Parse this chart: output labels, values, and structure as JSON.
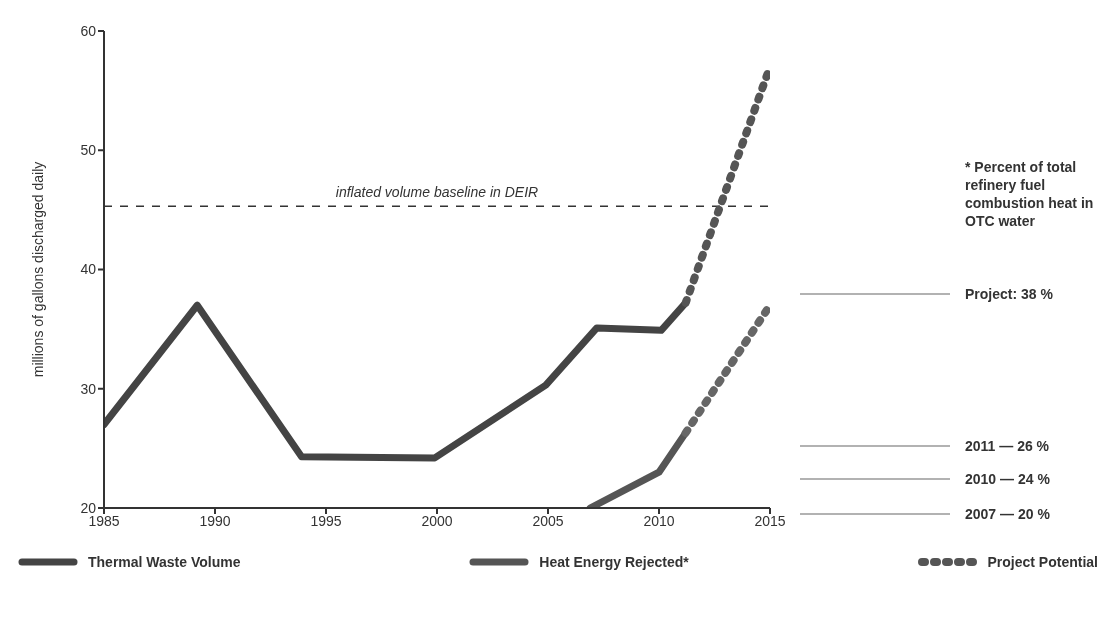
{
  "chart_data": {
    "type": "line",
    "ylabel": "millions of gallons discharged daily",
    "xlim": [
      1985,
      2015
    ],
    "xticks": [
      1985,
      1990,
      1995,
      2000,
      2005,
      2010,
      2015
    ],
    "ylim": [
      20,
      60
    ],
    "yticks": [
      20,
      30,
      40,
      50,
      60
    ],
    "legend": "bottom",
    "marker": "none",
    "series": [
      {
        "name": "Thermal Waste Volume",
        "color": "#444444",
        "line_style": "solid",
        "x": [
          1985,
          1989.2,
          1993.9,
          1999.9,
          2004.9,
          2007.2,
          2010.1,
          2011.2
        ],
        "values": [
          27,
          37,
          24.3,
          24.2,
          30.3,
          35.1,
          34.9,
          37.2
        ]
      },
      {
        "name": "Heat Energy Rejected*",
        "color": "#555555",
        "line_style": "solid",
        "x": [
          2006.9,
          2010,
          2011.2
        ],
        "values": [
          20,
          23,
          26.3
        ]
      },
      {
        "name": "Project Potential",
        "color": "#555555",
        "line_style": "dotted",
        "x": [
          2011.2,
          2015
        ],
        "values": [
          37.2,
          57
        ]
      },
      {
        "color": "#666666",
        "line_style": "dotted",
        "x": [
          2011.2,
          2015
        ],
        "values": [
          26.3,
          37
        ]
      }
    ],
    "ref_lines": [
      {
        "axis": "y",
        "value": 45.3,
        "label": "inflated volume baseline in DEIR",
        "line_style": "dashed",
        "color": "#333333"
      }
    ],
    "annotations": [
      "* Percent of total refinery fuel combustion heat in OTC water",
      "Project:  38 %",
      "2011 — 26 %",
      "2010 — 24 %",
      "2007 — 20 %"
    ]
  }
}
